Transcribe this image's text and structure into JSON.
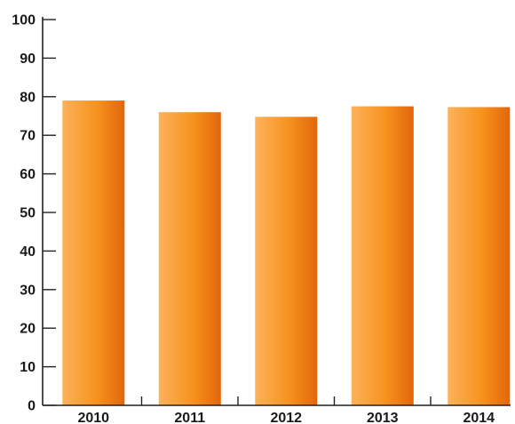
{
  "chart_data": {
    "type": "bar",
    "title": "",
    "xlabel": "",
    "ylabel": "",
    "categories": [
      "2010",
      "2011",
      "2012",
      "2013",
      "2014"
    ],
    "values": [
      79,
      76,
      74.8,
      77.5,
      77.3
    ],
    "ylim": [
      0,
      100
    ],
    "yticks": [
      "0",
      "10",
      "20",
      "30",
      "40",
      "50",
      "60",
      "70",
      "80",
      "90",
      "100"
    ],
    "grid": false,
    "legend": "none",
    "colors": {
      "bar_light": "#fcb25a",
      "bar_mid": "#f7921e",
      "bar_dark": "#e2660a",
      "axis": "#222222"
    }
  }
}
